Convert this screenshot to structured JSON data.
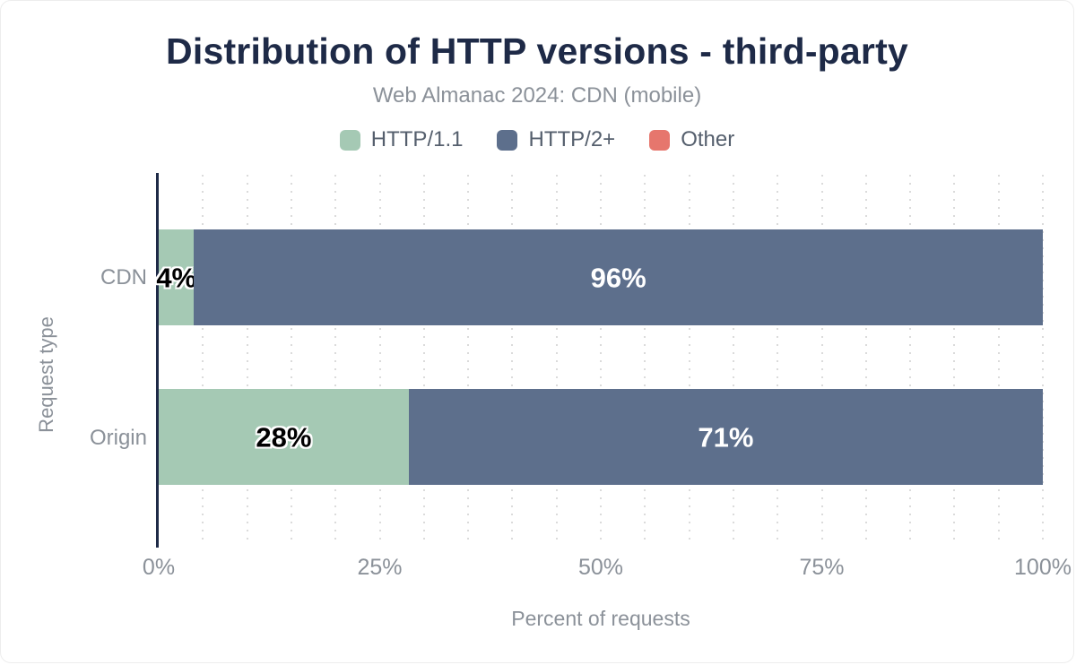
{
  "colors": {
    "title_navy": "#1e2a47",
    "muted_gray": "#8b9199",
    "legend_text": "#555f6d",
    "axis_line": "#1e2a47",
    "gridline": "#cfcfcf",
    "http11_green": "#a5c9b4",
    "http2_blue": "#5d6f8c",
    "other_salmon": "#e6766d"
  },
  "chart_data": {
    "type": "bar",
    "orientation": "horizontal",
    "stacked": true,
    "title": "Distribution of HTTP versions - third-party",
    "subtitle": "Web Almanac 2024: CDN (mobile)",
    "xlabel": "Percent of requests",
    "ylabel": "Request type",
    "xlim": [
      0,
      100
    ],
    "xticks": [
      {
        "label": "0%",
        "value": 0
      },
      {
        "label": "25%",
        "value": 25
      },
      {
        "label": "50%",
        "value": 50
      },
      {
        "label": "75%",
        "value": 75
      },
      {
        "label": "100%",
        "value": 100
      }
    ],
    "grid": {
      "style": "dotted-vertical",
      "interval_percent": 5
    },
    "legend_position": "top",
    "categories": [
      "CDN",
      "Origin"
    ],
    "series": [
      {
        "name": "HTTP/1.1",
        "color": "#a5c9b4",
        "label_color": "#000000",
        "label_halo": true,
        "values": [
          4,
          28
        ],
        "labels": [
          "4%",
          "28%"
        ]
      },
      {
        "name": "HTTP/2+",
        "color": "#5d6f8c",
        "label_color": "#ffffff",
        "label_halo": false,
        "values": [
          96,
          71
        ],
        "labels": [
          "96%",
          "71%"
        ]
      },
      {
        "name": "Other",
        "color": "#e6766d",
        "label_color": "#ffffff",
        "label_halo": false,
        "values": [
          0,
          0
        ],
        "labels": [
          "",
          ""
        ]
      }
    ]
  }
}
